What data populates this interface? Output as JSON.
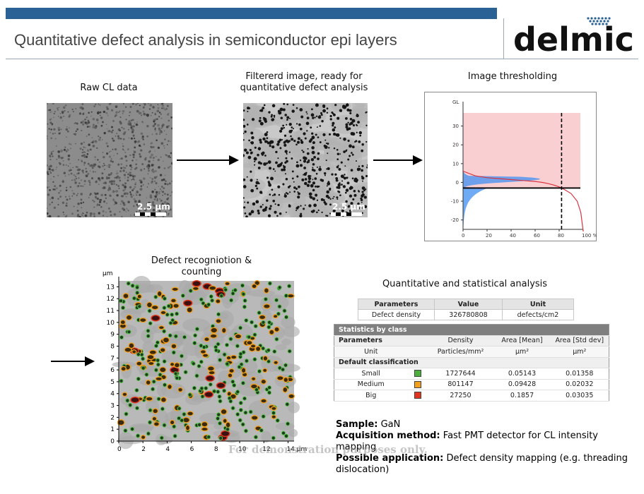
{
  "header": {
    "title": "Quantitative defect analysis in semiconductor epi layers",
    "logo_text": "delmic",
    "brand_color": "#2a6296"
  },
  "panels": {
    "raw": {
      "caption": "Raw CL data",
      "scale": "2.5 µm"
    },
    "filtered": {
      "caption_line1": "Filtererd image, ready for",
      "caption_line2": "quantitative defect analysis",
      "scale": "2.5 µm"
    },
    "threshold": {
      "caption": "Image thresholding"
    },
    "recognition": {
      "caption": "Defect recogniotion & counting"
    },
    "stats": {
      "caption": "Quantitative and statistical analysis"
    }
  },
  "chart_data": [
    {
      "type": "line",
      "title": "",
      "ylabel": "GL",
      "xlabel": "",
      "x_ticks": [
        "0",
        "20",
        "40",
        "60",
        "80",
        "100 %"
      ],
      "y_ticks": [
        "30",
        "20",
        "10",
        "0",
        "-10",
        "-20"
      ],
      "xlim": [
        0,
        100
      ],
      "ylim": [
        -25,
        40
      ],
      "threshold_y": -3,
      "threshold_x_dashed": 82,
      "curve": {
        "x": [
          0,
          10,
          20,
          30,
          40,
          50,
          60,
          66,
          70,
          75,
          80,
          85,
          90,
          95,
          98,
          100
        ],
        "y": [
          6,
          3.5,
          2.5,
          2,
          1.5,
          1,
          0.5,
          0,
          -0.5,
          -1.3,
          -2.4,
          -4,
          -6,
          -10,
          -16,
          -26
        ]
      },
      "grid": false,
      "legend": "none"
    },
    {
      "type": "scatter",
      "title": "",
      "ylabel": "µm",
      "xlabel": "",
      "x_ticks": [
        "0",
        "2",
        "4",
        "6",
        "8",
        "10",
        "12",
        "14 µm"
      ],
      "y_ticks": [
        "13",
        "12",
        "11",
        "10",
        "9",
        "8",
        "7",
        "6",
        "5",
        "4",
        "3",
        "2",
        "1",
        "0"
      ],
      "xlim": [
        0,
        14.5
      ],
      "ylim": [
        0,
        13.5
      ],
      "legend": "none"
    }
  ],
  "density_table": {
    "headers": [
      "Parameters",
      "Value",
      "Unit"
    ],
    "row": [
      "Defect density",
      "326780808",
      "defects/cm2"
    ]
  },
  "class_table": {
    "band": "Statistics by class",
    "headers": [
      "Parameters",
      "",
      "Density",
      "Area [Mean]",
      "Area [Std dev]"
    ],
    "units": [
      "Unit",
      "",
      "Particles/mm²",
      "µm²",
      "µm²"
    ],
    "section": "Default classification",
    "rows": [
      {
        "name": "Small",
        "color": "#4caf3c",
        "density": "1727644",
        "mean": "0.05143",
        "std": "0.01358"
      },
      {
        "name": "Medium",
        "color": "#f2a01c",
        "density": "801147",
        "mean": "0.09428",
        "std": "0.02032"
      },
      {
        "name": "Big",
        "color": "#e0341c",
        "density": "27250",
        "mean": "0.1857",
        "std": "0.03035"
      }
    ]
  },
  "info": {
    "sample_label": "Sample:",
    "sample_value": "GaN",
    "method_label": "Acquisition method:",
    "method_value": "Fast PMT detector for CL intensity mapping",
    "app_label": "Possible application:",
    "app_value": "Defect density mapping (e.g. threading dislocation)"
  },
  "watermark": "For demonstration purposes only."
}
